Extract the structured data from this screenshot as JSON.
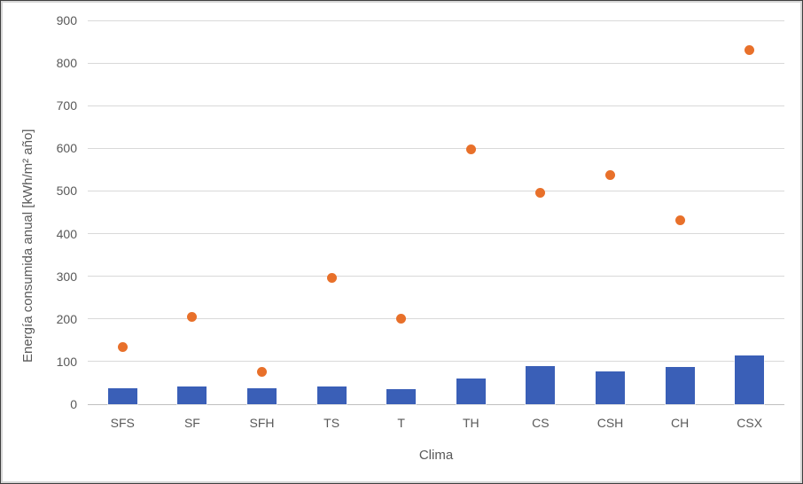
{
  "chart_data": {
    "type": "bar",
    "subtype": "combo-bar-scatter",
    "title": "",
    "xlabel": "Clima",
    "ylabel": "Energía consumida anual [kWh/m² año]",
    "categories": [
      "SFS",
      "SF",
      "SFH",
      "TS",
      "T",
      "TH",
      "CS",
      "CSH",
      "CH",
      "CSX"
    ],
    "series": [
      {
        "name": "bars",
        "type": "bar",
        "values": [
          37,
          41,
          38,
          41,
          35,
          61,
          89,
          76,
          87,
          114
        ]
      },
      {
        "name": "points",
        "type": "scatter",
        "values": [
          135,
          205,
          75,
          296,
          200,
          597,
          495,
          538,
          432,
          831
        ]
      }
    ],
    "ylim": [
      0,
      900
    ],
    "yticks": [
      0,
      100,
      200,
      300,
      400,
      500,
      600,
      700,
      800,
      900
    ],
    "grid": true,
    "legend_position": "none"
  },
  "colors": {
    "bar": "#3A5FB7",
    "point": "#E8702A",
    "gridline": "#d9d9d9",
    "axis_line": "#bfbfbf",
    "tick_text": "#595959"
  }
}
